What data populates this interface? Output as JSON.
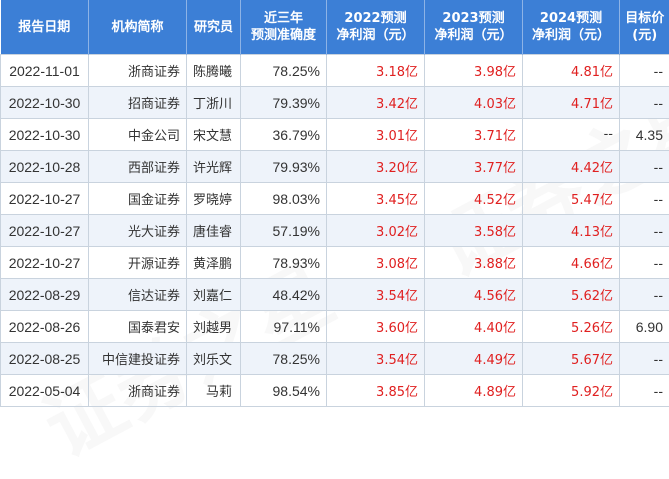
{
  "headers": {
    "date": "报告日期",
    "org": "机构简称",
    "analyst": "研究员",
    "accuracy_line1": "近三年",
    "accuracy_line2": "预测准确度",
    "y2022_line1": "2022预测",
    "y2022_line2": "净利润（元）",
    "y2023_line1": "2023预测",
    "y2023_line2": "净利润（元）",
    "y2024_line1": "2024预测",
    "y2024_line2": "净利润（元）",
    "target_line1": "目标价",
    "target_line2": "(元)"
  },
  "rows": [
    {
      "date": "2022-11-01",
      "org": "浙商证券",
      "analyst": "陈腾曦",
      "accuracy": "78.25%",
      "p2022": "3.18亿",
      "p2023": "3.98亿",
      "p2024": "4.81亿",
      "target": "--"
    },
    {
      "date": "2022-10-30",
      "org": "招商证券",
      "analyst": "丁浙川",
      "accuracy": "79.39%",
      "p2022": "3.42亿",
      "p2023": "4.03亿",
      "p2024": "4.71亿",
      "target": "--"
    },
    {
      "date": "2022-10-30",
      "org": "中金公司",
      "analyst": "宋文慧",
      "accuracy": "36.79%",
      "p2022": "3.01亿",
      "p2023": "3.71亿",
      "p2024": "--",
      "target": "4.35"
    },
    {
      "date": "2022-10-28",
      "org": "西部证券",
      "analyst": "许光辉",
      "accuracy": "79.93%",
      "p2022": "3.20亿",
      "p2023": "3.77亿",
      "p2024": "4.42亿",
      "target": "--"
    },
    {
      "date": "2022-10-27",
      "org": "国金证券",
      "analyst": "罗晓婷",
      "accuracy": "98.03%",
      "p2022": "3.45亿",
      "p2023": "4.52亿",
      "p2024": "5.47亿",
      "target": "--"
    },
    {
      "date": "2022-10-27",
      "org": "光大证券",
      "analyst": "唐佳睿",
      "accuracy": "57.19%",
      "p2022": "3.02亿",
      "p2023": "3.58亿",
      "p2024": "4.13亿",
      "target": "--"
    },
    {
      "date": "2022-10-27",
      "org": "开源证券",
      "analyst": "黄泽鹏",
      "accuracy": "78.93%",
      "p2022": "3.08亿",
      "p2023": "3.88亿",
      "p2024": "4.66亿",
      "target": "--"
    },
    {
      "date": "2022-08-29",
      "org": "信达证券",
      "analyst": "刘嘉仁",
      "accuracy": "48.42%",
      "p2022": "3.54亿",
      "p2023": "4.56亿",
      "p2024": "5.62亿",
      "target": "--"
    },
    {
      "date": "2022-08-26",
      "org": "国泰君安",
      "analyst": "刘越男",
      "accuracy": "97.11%",
      "p2022": "3.60亿",
      "p2023": "4.40亿",
      "p2024": "5.26亿",
      "target": "6.90"
    },
    {
      "date": "2022-08-25",
      "org": "中信建投证券",
      "analyst": "刘乐文",
      "accuracy": "78.25%",
      "p2022": "3.54亿",
      "p2023": "4.49亿",
      "p2024": "5.67亿",
      "target": "--"
    },
    {
      "date": "2022-05-04",
      "org": "浙商证券",
      "analyst": "马莉",
      "accuracy": "98.54%",
      "p2022": "3.85亿",
      "p2023": "4.89亿",
      "p2024": "5.92亿",
      "target": "--"
    }
  ],
  "colors": {
    "header_bg": "#3c7fd6",
    "header_text": "#ffffff",
    "alt_row_bg": "#eef3fa",
    "forecast_text": "#e02020",
    "body_text": "#333333"
  }
}
